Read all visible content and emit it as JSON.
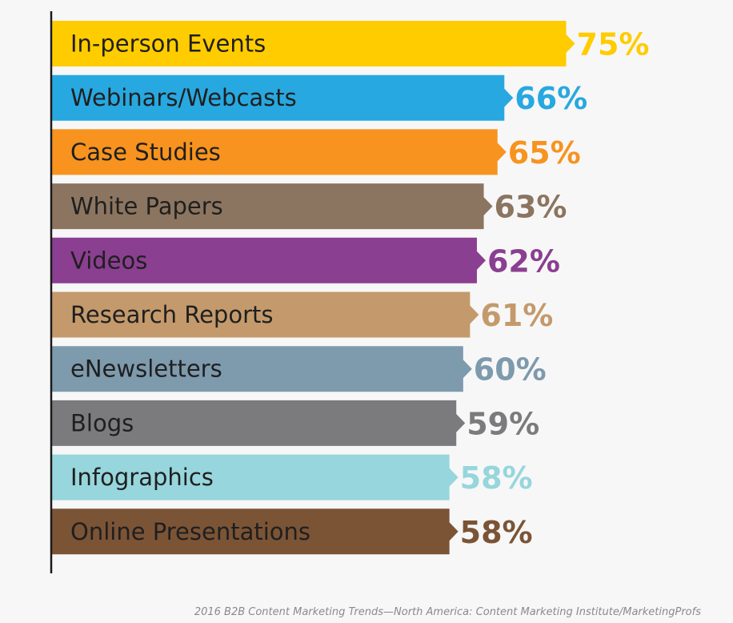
{
  "chart_data": {
    "type": "bar",
    "orientation": "horizontal",
    "categories": [
      "In-person Events",
      "Webinars/Webcasts",
      "Case Studies",
      "White Papers",
      "Videos",
      "Research Reports",
      "eNewsletters",
      "Blogs",
      "Infographics",
      "Online Presentations"
    ],
    "values": [
      75,
      66,
      65,
      63,
      62,
      61,
      60,
      59,
      58,
      58
    ],
    "value_labels": [
      "75%",
      "66%",
      "65%",
      "63%",
      "62%",
      "61%",
      "60%",
      "59%",
      "58%",
      "58%"
    ],
    "colors": [
      "#ffcc00",
      "#27a8e0",
      "#f7931e",
      "#8c7560",
      "#8b3f91",
      "#c49a6c",
      "#7e9aad",
      "#7b7b7d",
      "#96d6dc",
      "#7b5436"
    ],
    "xlim": [
      0,
      100
    ],
    "grid": false,
    "legend": "none",
    "source_note": "2016 B2B Content Marketing Trends—North America: Content Marketing Institute/MarketingProfs"
  }
}
